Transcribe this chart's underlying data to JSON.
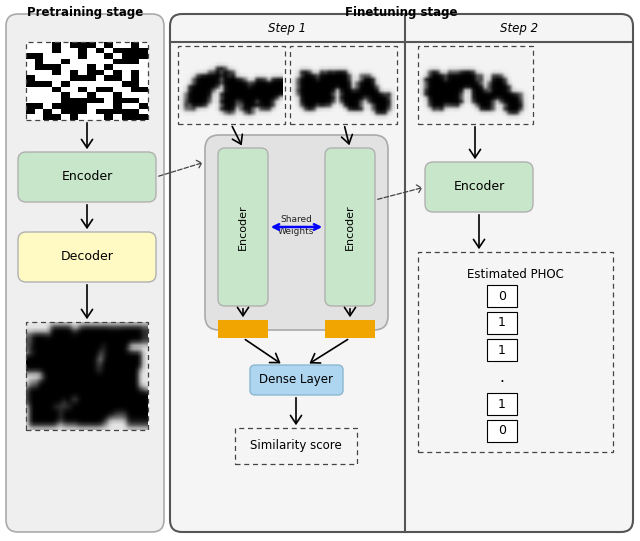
{
  "title_pretraining": "Pretraining stage",
  "title_finetuning": "Finetuning stage",
  "step1_label": "Step 1",
  "step2_label": "Step 2",
  "encoder_label": "Encoder",
  "decoder_label": "Decoder",
  "dense_layer_label": "Dense Layer",
  "similarity_score_label": "Similarity score",
  "estimated_phoc_label": "Estimated PHOC",
  "phoc_values": [
    "0",
    "1",
    "1",
    ".",
    "1",
    "0"
  ],
  "color_bg_pretrain": "#efefef",
  "color_bg_finetune": "#f5f5f5",
  "color_encoder_green": "#c8e6c9",
  "color_decoder_yellow": "#fff9c4",
  "color_orange": "#f0a500",
  "color_dense_blue": "#aed6f1",
  "color_shared_bg": "#e2e2e2",
  "figsize": [
    6.4,
    5.41
  ],
  "dpi": 100
}
